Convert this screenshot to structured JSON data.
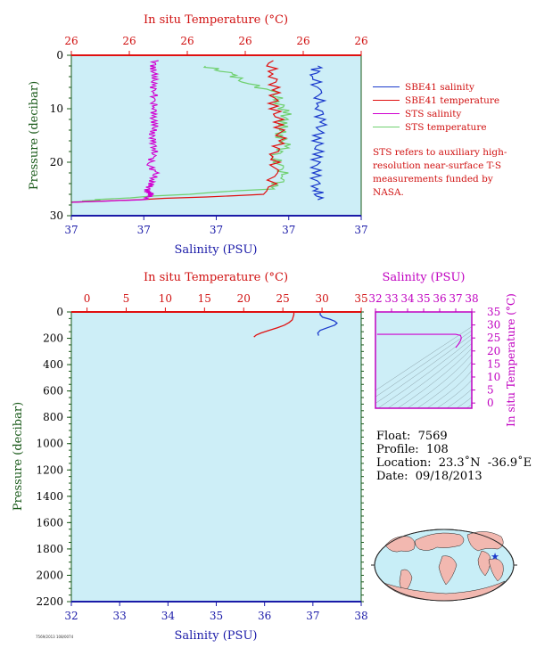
{
  "colors": {
    "plot_bg": "#cdeef7",
    "temperature": "#e01010",
    "salinity": "#1a3acc",
    "sts_salinity": "#d000d0",
    "sts_temperature": "#6fd06f",
    "pressure_axis": "#1a5a1a",
    "inset_axis": "#c000c0"
  },
  "chart_data": [
    {
      "id": "top",
      "type": "line",
      "top_axis_label": "In situ Temperature (°C)",
      "top_tick_labels": [
        "26",
        "26",
        "26",
        "26",
        "26",
        "26"
      ],
      "bottom_axis_label": "Salinity (PSU)",
      "bottom_tick_labels": [
        "37",
        "37",
        "37",
        "37",
        "37"
      ],
      "ylabel": "Pressure (decibar)",
      "y_ticks": [
        0,
        10,
        20,
        30
      ],
      "ylim": [
        0,
        30
      ],
      "xlim_frac": [
        0,
        1
      ],
      "legend": [
        "SBE41 salinity",
        "SBE41 temperature",
        "STS salinity",
        "STS temperature"
      ],
      "note": "STS refers to auxiliary high-resolution near-surface T-S measurements funded by NASA.",
      "series": [
        {
          "name": "SBE41 salinity",
          "color_key": "salinity",
          "x": [
            0.85,
            0.84,
            0.85,
            0.86,
            0.86,
            0.85,
            0.85,
            0.84,
            0.85,
            0.85
          ],
          "y": [
            2,
            4,
            7,
            10,
            13,
            16,
            19,
            22,
            25,
            27
          ]
        },
        {
          "name": "SBE41 temperature",
          "color_key": "temperature",
          "x": [
            0.68,
            0.7,
            0.7,
            0.7,
            0.72,
            0.72,
            0.7,
            0.7,
            0.68,
            0.0
          ],
          "y": [
            1,
            4,
            7,
            10,
            13,
            16,
            19,
            22,
            26,
            27.5
          ]
        },
        {
          "name": "STS salinity",
          "color_key": "sts_salinity",
          "x": [
            0.29,
            0.28,
            0.29,
            0.28,
            0.29,
            0.28,
            0.29,
            0.28,
            0.29,
            0.28,
            0.28,
            0.29,
            0.28,
            0.27,
            0.29,
            0.28,
            0.27,
            0.26,
            0.28,
            0.25,
            0.0
          ],
          "y": [
            1,
            2.5,
            4,
            5.5,
            7,
            8.5,
            10,
            11.5,
            13,
            14.5,
            16,
            17.5,
            19,
            20.5,
            22,
            23.5,
            24.5,
            25.5,
            26,
            27,
            27.5
          ]
        },
        {
          "name": "STS temperature",
          "color_key": "sts_temperature",
          "x": [
            0.46,
            0.55,
            0.6,
            0.7,
            0.72,
            0.74,
            0.73,
            0.72,
            0.74,
            0.7,
            0.72,
            0.74,
            0.68,
            0.1,
            0.0
          ],
          "y": [
            2,
            3.5,
            5,
            7,
            9,
            11,
            13,
            15,
            17,
            19,
            21,
            23,
            25,
            27,
            27.5
          ]
        }
      ]
    },
    {
      "id": "bottom",
      "type": "line",
      "top_axis_label": "In situ Temperature (°C)",
      "x_top_ticks": [
        0,
        5,
        10,
        15,
        20,
        25,
        30,
        35
      ],
      "xlim_top": [
        -2,
        35
      ],
      "bottom_axis_label": "Salinity (PSU)",
      "x_bottom_ticks": [
        32,
        33,
        34,
        35,
        36,
        37,
        38
      ],
      "xlim_bottom": [
        32,
        38
      ],
      "ylabel": "Pressure (decibar)",
      "y_ticks": [
        0,
        200,
        400,
        600,
        800,
        1000,
        1200,
        1400,
        1600,
        1800,
        2000,
        2200
      ],
      "ylim": [
        0,
        2200
      ],
      "series": [
        {
          "name": "Temperature",
          "axis": "top",
          "color_key": "temperature",
          "x": [
            26.4,
            26.4,
            26.3,
            26.2,
            25.8,
            25.2,
            24.3,
            23.2,
            22.2,
            21.6,
            21.3
          ],
          "y": [
            0,
            20,
            40,
            60,
            80,
            100,
            120,
            140,
            160,
            175,
            190
          ]
        },
        {
          "name": "Salinity",
          "axis": "bottom",
          "color_key": "salinity",
          "x": [
            37.15,
            37.15,
            37.2,
            37.35,
            37.45,
            37.5,
            37.45,
            37.3,
            37.15,
            37.1,
            37.12
          ],
          "y": [
            0,
            20,
            40,
            55,
            70,
            85,
            100,
            120,
            140,
            160,
            180
          ]
        }
      ]
    },
    {
      "id": "inset",
      "type": "line",
      "top_axis_label": "Salinity (PSU)",
      "x_ticks": [
        32,
        33,
        34,
        35,
        36,
        37,
        38
      ],
      "xlim": [
        32,
        38
      ],
      "right_axis_label": "In situ Temperature (°C)",
      "y_ticks": [
        0,
        5,
        10,
        15,
        20,
        25,
        30,
        35
      ],
      "ylim": [
        -2,
        35
      ],
      "series": [
        {
          "name": "T-S",
          "color_key": "sts_salinity",
          "x": [
            32.1,
            37.0,
            37.3,
            37.35,
            37.3,
            37.15,
            37.0
          ],
          "y": [
            26.4,
            26.4,
            26.0,
            25.0,
            24.0,
            22.5,
            21.3
          ]
        }
      ]
    }
  ],
  "info": {
    "float": "Float:  7569",
    "profile": "Profile:  108",
    "location": "Location:  23.3˚N  -36.9˚E",
    "date": "Date:  09/18/2013"
  },
  "footer_code": "7569/2013 108/0074"
}
